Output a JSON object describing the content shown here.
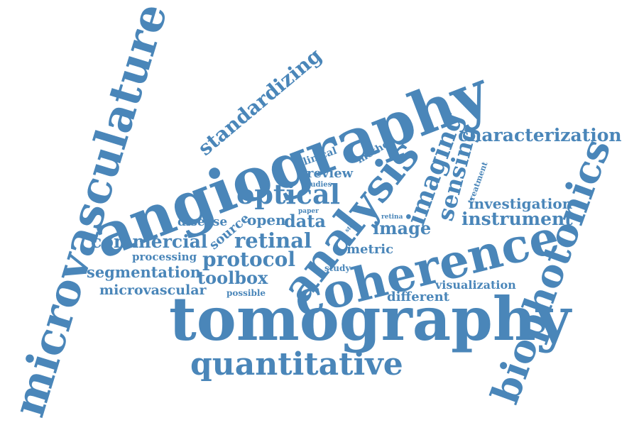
{
  "color": "#4a86b9",
  "words": {
    "microvasculature": "microvasculature",
    "angiography": "angiography",
    "tomography": "tomography",
    "coherence": "coherence",
    "biophotonics": "biophotonics",
    "analysis": "analysis",
    "quantitative": "quantitative",
    "optical": "optical",
    "standardizing": "standardizing",
    "imaging": "imaging",
    "sensing": "sensing",
    "characterization": "characterization",
    "investigation": "investigation",
    "instrument": "instrument",
    "commercial": "commercial",
    "retinal": "retinal",
    "protocol": "protocol",
    "segmentation": "segmentation",
    "microvascular": "microvascular",
    "toolbox": "toolbox",
    "processing": "processing",
    "disease": "disease",
    "source": "source",
    "open": "open",
    "data": "data",
    "image": "image",
    "metric": "metric",
    "review": "review",
    "clinical": "clinical",
    "method": "method",
    "studies": "studies",
    "paper": "paper",
    "visualization": "visualization",
    "different": "different",
    "treatment": "treatment",
    "retina": "retina",
    "step": "step",
    "study": "study",
    "possible": "possible"
  }
}
